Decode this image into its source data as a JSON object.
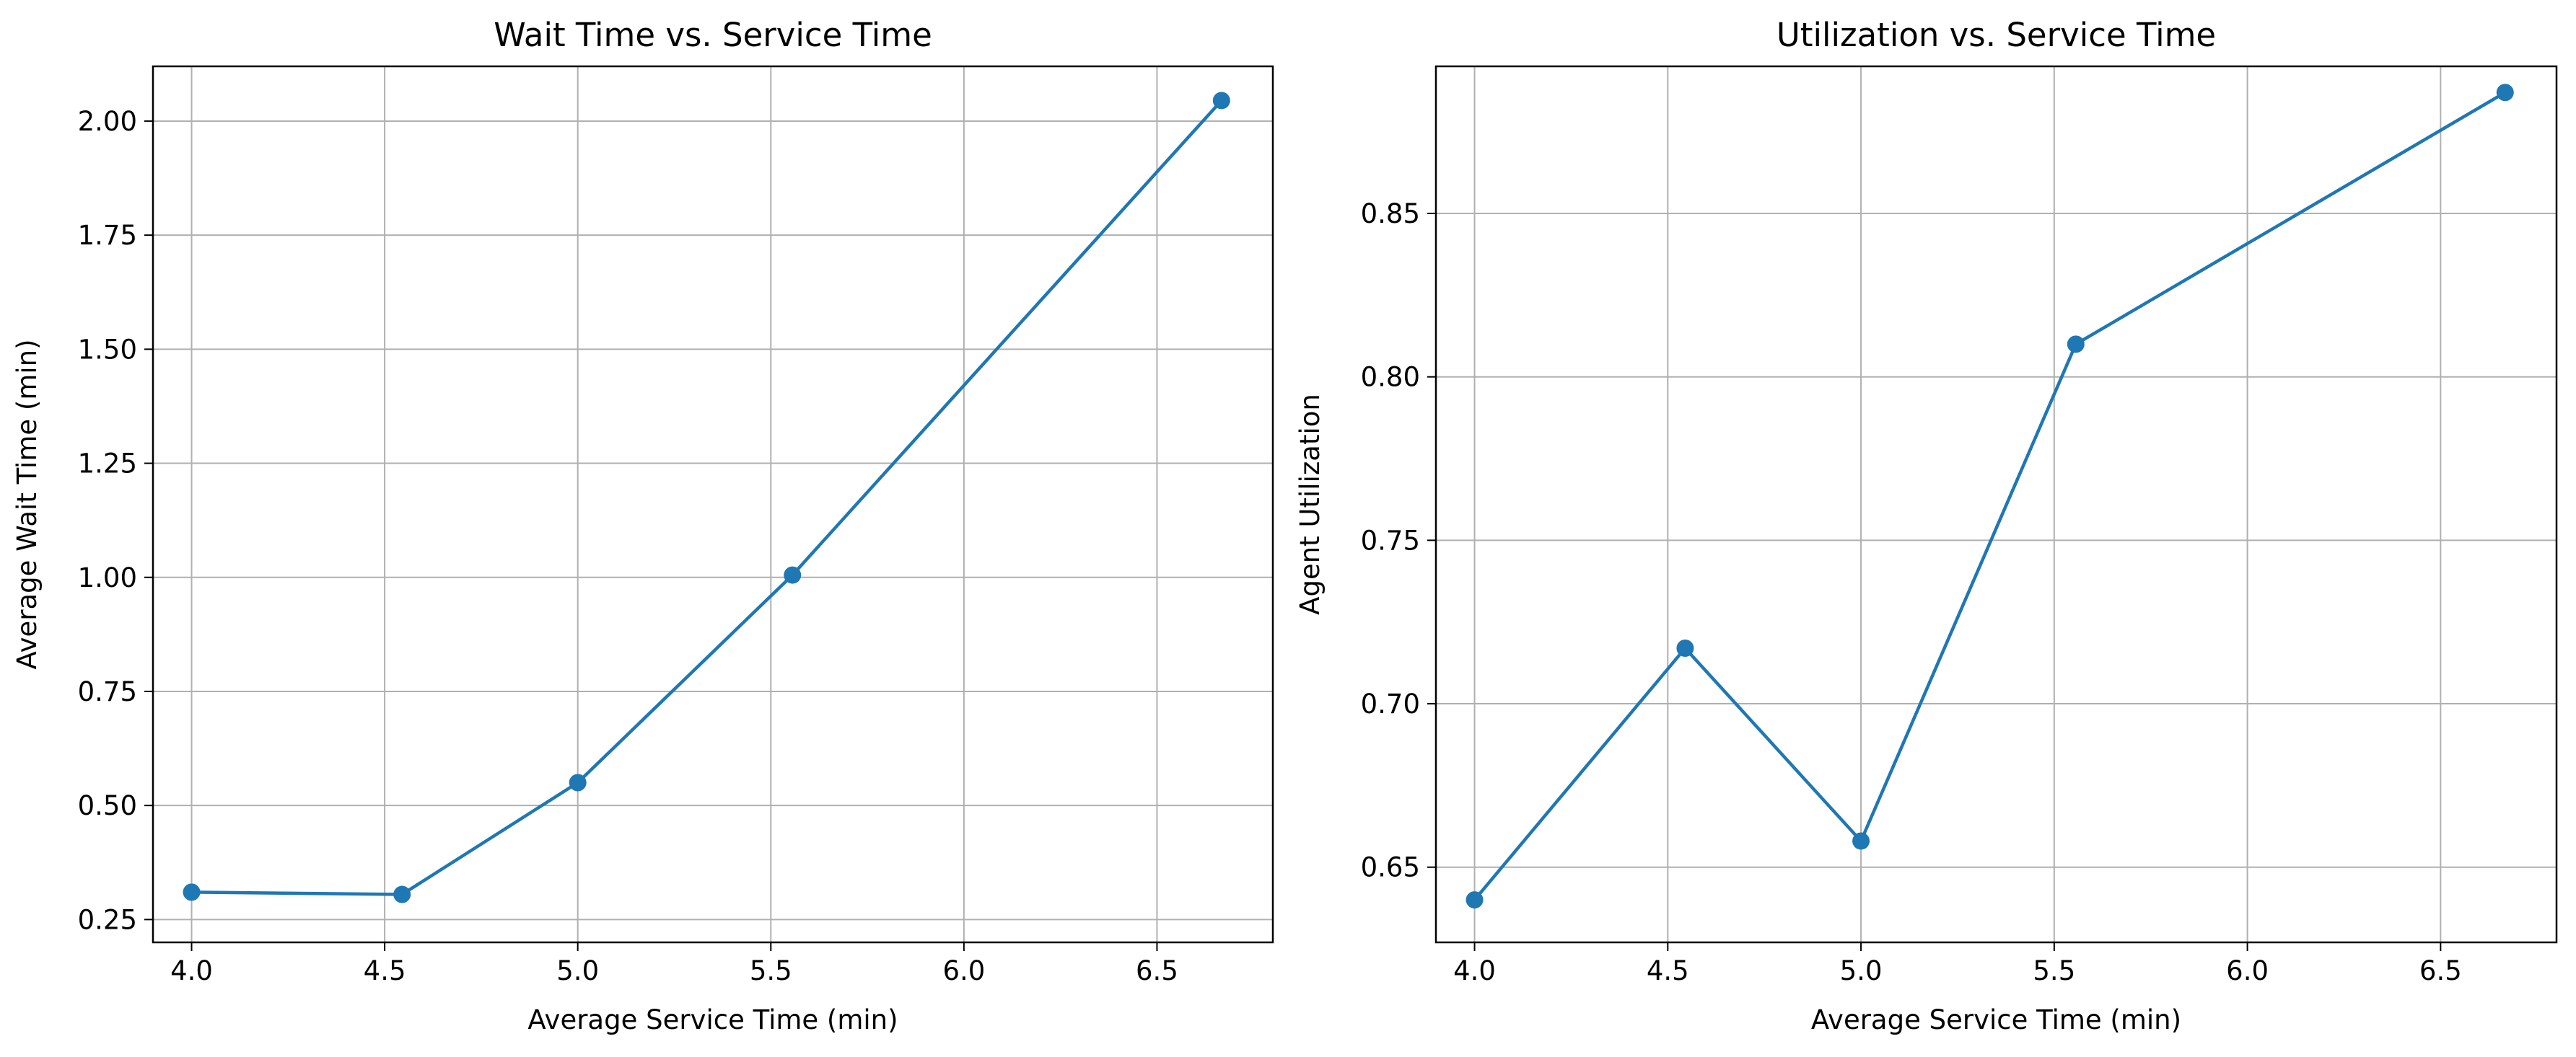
{
  "chart_data": [
    {
      "type": "line",
      "title": "Wait Time vs. Service Time",
      "xlabel": "Average Service Time (min)",
      "ylabel": "Average Wait Time (min)",
      "xlim": [
        3.9,
        6.8
      ],
      "ylim": [
        0.2,
        2.12
      ],
      "xticks": [
        4.0,
        4.5,
        5.0,
        5.5,
        6.0,
        6.5
      ],
      "xtick_labels": [
        "4.0",
        "4.5",
        "5.0",
        "5.5",
        "6.0",
        "6.5"
      ],
      "yticks": [
        0.25,
        0.5,
        0.75,
        1.0,
        1.25,
        1.5,
        1.75,
        2.0
      ],
      "ytick_labels": [
        "0.25",
        "0.50",
        "0.75",
        "1.00",
        "1.25",
        "1.50",
        "1.75",
        "2.00"
      ],
      "grid": true,
      "series": [
        {
          "color": "#1f77b4",
          "marker": "circle",
          "x": [
            4.0,
            4.545,
            5.0,
            5.556,
            6.667
          ],
          "y": [
            0.31,
            0.305,
            0.55,
            1.005,
            2.045
          ]
        }
      ]
    },
    {
      "type": "line",
      "title": "Utilization vs. Service Time",
      "xlabel": "Average Service Time (min)",
      "ylabel": "Agent Utilization",
      "xlim": [
        3.9,
        6.8
      ],
      "ylim": [
        0.627,
        0.895
      ],
      "xticks": [
        4.0,
        4.5,
        5.0,
        5.5,
        6.0,
        6.5
      ],
      "xtick_labels": [
        "4.0",
        "4.5",
        "5.0",
        "5.5",
        "6.0",
        "6.5"
      ],
      "yticks": [
        0.65,
        0.7,
        0.75,
        0.8,
        0.85
      ],
      "ytick_labels": [
        "0.65",
        "0.70",
        "0.75",
        "0.80",
        "0.85"
      ],
      "grid": true,
      "series": [
        {
          "color": "#1f77b4",
          "marker": "circle",
          "x": [
            4.0,
            4.545,
            5.0,
            5.556,
            6.667
          ],
          "y": [
            0.64,
            0.717,
            0.658,
            0.81,
            0.887
          ]
        }
      ]
    }
  ]
}
